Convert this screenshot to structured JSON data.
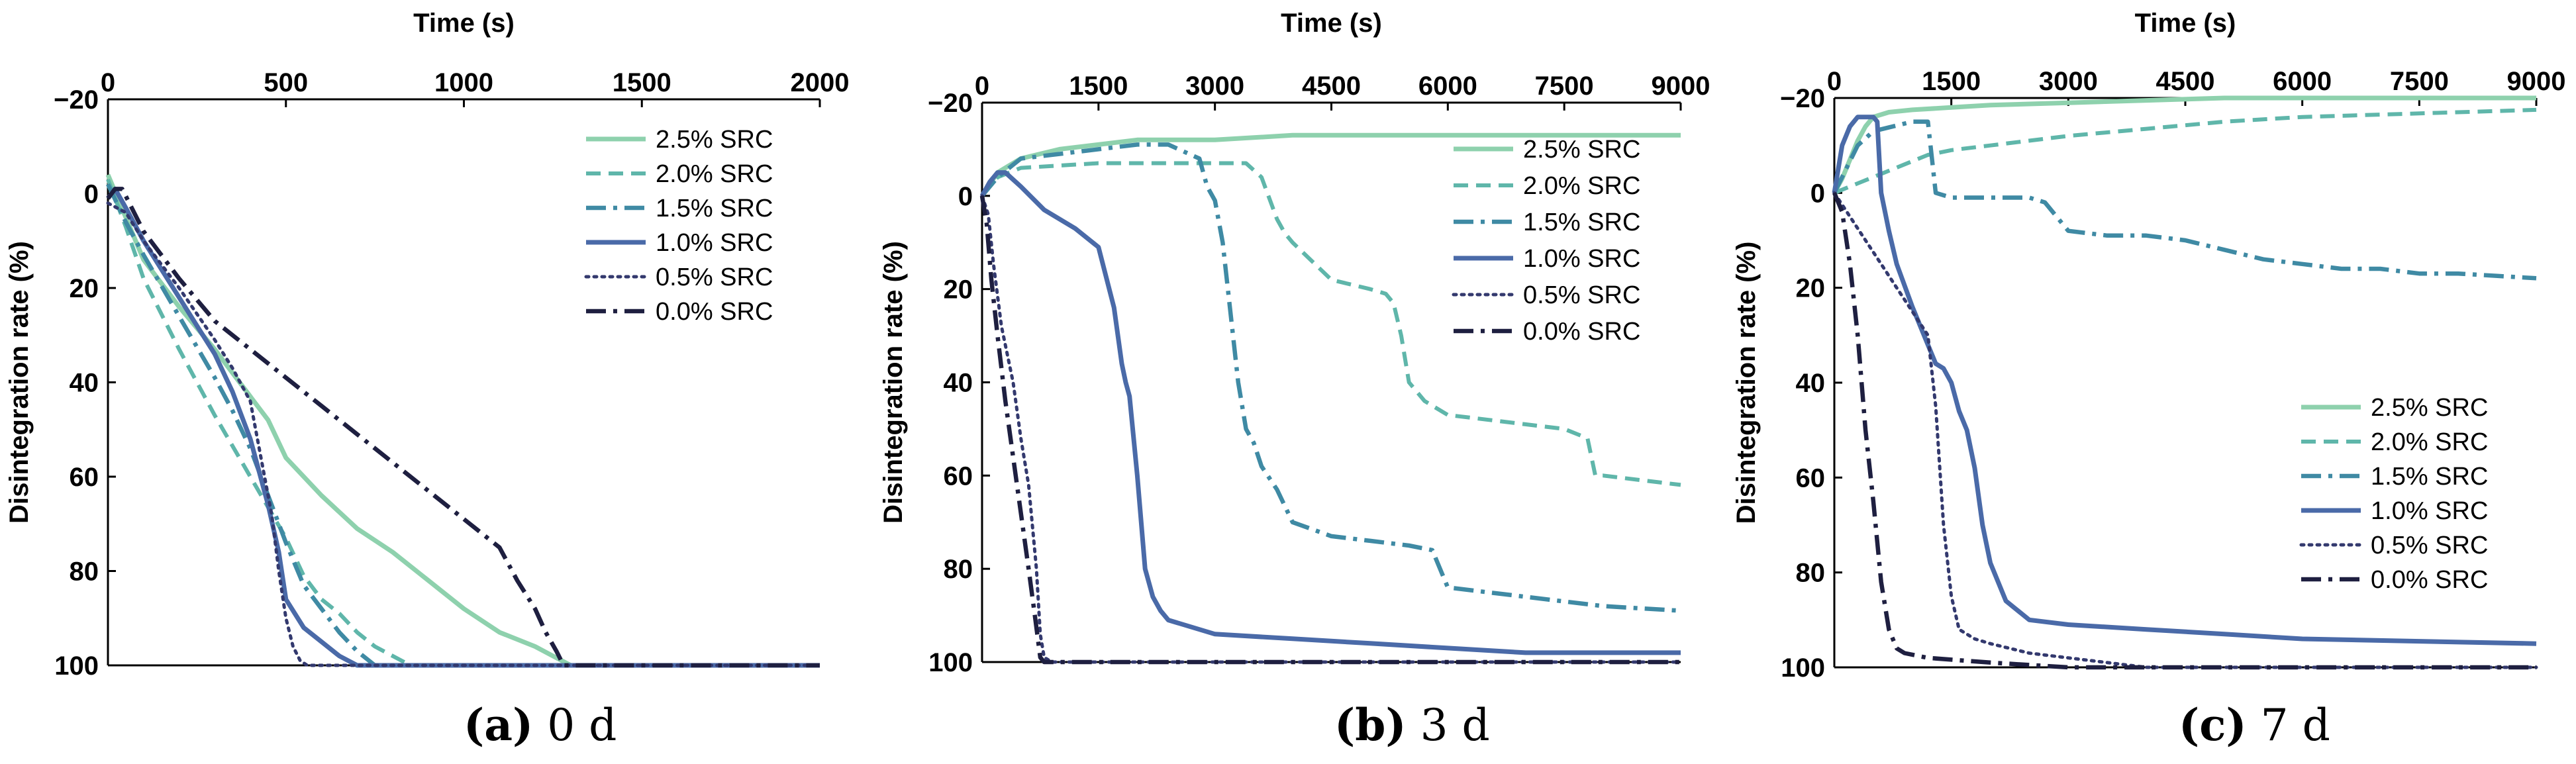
{
  "figure": {
    "panel_count": 3
  },
  "colors": {
    "s25": "#8ed1ad",
    "s20": "#5fb6aa",
    "s15": "#3f8aa4",
    "s10": "#4a6aa8",
    "s05": "#33396e",
    "s00": "#1e1f40"
  },
  "chart_data": [
    {
      "type": "line",
      "caption_letter": "(a)",
      "caption_text": " 0 d",
      "xlabel": "Time (s)",
      "ylabel": "Disintegration rate (%)",
      "xlim": [
        0,
        2000
      ],
      "ylim": [
        -20,
        100
      ],
      "x_ticks": [
        0,
        500,
        1000,
        1500,
        2000
      ],
      "y_ticks": [
        -20,
        0,
        20,
        40,
        60,
        80,
        100
      ],
      "y_tick_labels": [
        "−20",
        "0",
        "20",
        "40",
        "60",
        "80",
        "100"
      ],
      "legend_position": "top-right",
      "series": [
        {
          "name": "2.5% SRC",
          "style": "solid",
          "color_key": "s25",
          "x": [
            0,
            50,
            100,
            200,
            300,
            350,
            400,
            450,
            500,
            600,
            700,
            800,
            900,
            1000,
            1100,
            1200,
            1250,
            1300,
            1400,
            2000
          ],
          "y": [
            -4,
            5,
            14,
            24,
            33,
            38,
            43,
            48,
            56,
            64,
            71,
            76,
            82,
            88,
            93,
            96,
            98,
            100,
            100,
            100
          ]
        },
        {
          "name": "2.0% SRC",
          "style": "dashed",
          "color_key": "s20",
          "x": [
            0,
            50,
            100,
            200,
            300,
            400,
            500,
            550,
            600,
            650,
            700,
            750,
            800,
            850,
            900,
            2000
          ],
          "y": [
            -3,
            7,
            18,
            33,
            47,
            60,
            73,
            81,
            86,
            89,
            93,
            96,
            98,
            100,
            100,
            100
          ]
        },
        {
          "name": "1.5% SRC",
          "style": "dashdot",
          "color_key": "s15",
          "x": [
            0,
            50,
            100,
            200,
            300,
            350,
            400,
            450,
            500,
            550,
            600,
            650,
            700,
            750,
            800,
            2000
          ],
          "y": [
            -2,
            6,
            13,
            26,
            39,
            46,
            54,
            64,
            74,
            83,
            88,
            93,
            97,
            100,
            100,
            100
          ]
        },
        {
          "name": "1.0% SRC",
          "style": "solid",
          "color_key": "s10",
          "x": [
            0,
            20,
            50,
            100,
            200,
            300,
            350,
            400,
            450,
            480,
            500,
            550,
            600,
            650,
            700,
            720,
            2000
          ],
          "y": [
            1,
            -1,
            3,
            10,
            22,
            34,
            42,
            52,
            66,
            76,
            86,
            92,
            95,
            98,
            100,
            100,
            100
          ]
        },
        {
          "name": "0.5% SRC",
          "style": "dotted",
          "color_key": "s05",
          "x": [
            0,
            50,
            100,
            200,
            300,
            350,
            400,
            430,
            460,
            480,
            500,
            520,
            540,
            560,
            2000
          ],
          "y": [
            2,
            4,
            10,
            20,
            31,
            37,
            44,
            56,
            68,
            80,
            90,
            96,
            99,
            100,
            100
          ]
        },
        {
          "name": "0.0% SRC",
          "style": "dashdot",
          "color_key": "s00",
          "x": [
            0,
            20,
            40,
            60,
            100,
            200,
            300,
            400,
            500,
            600,
            700,
            800,
            900,
            1000,
            1100,
            1150,
            1200,
            1230,
            1260,
            1280,
            2000
          ],
          "y": [
            1,
            -1,
            -1,
            2,
            8,
            18,
            27,
            33,
            39,
            45,
            51,
            57,
            63,
            69,
            75,
            82,
            88,
            93,
            97,
            100,
            100
          ]
        }
      ]
    },
    {
      "type": "line",
      "caption_letter": "(b)",
      "caption_text": " 3 d",
      "xlabel": "Time (s)",
      "ylabel": "Disintegration rate (%)",
      "xlim": [
        0,
        9000
      ],
      "ylim": [
        -20,
        100
      ],
      "x_ticks": [
        0,
        1500,
        3000,
        4500,
        6000,
        7500,
        9000
      ],
      "y_ticks": [
        -20,
        0,
        20,
        40,
        60,
        80,
        100
      ],
      "y_tick_labels": [
        "−20",
        "0",
        "20",
        "40",
        "60",
        "80",
        "100"
      ],
      "legend_position": "top-right",
      "series": [
        {
          "name": "2.5% SRC",
          "style": "solid",
          "color_key": "s25",
          "x": [
            0,
            200,
            500,
            1000,
            1500,
            2000,
            3000,
            4000,
            9000
          ],
          "y": [
            0,
            -5,
            -8,
            -10,
            -11,
            -12,
            -12,
            -13,
            -13
          ]
        },
        {
          "name": "2.0% SRC",
          "style": "dashed",
          "color_key": "s20",
          "x": [
            0,
            200,
            500,
            1500,
            2500,
            3400,
            3600,
            3800,
            3900,
            4000,
            4500,
            5000,
            5200,
            5300,
            5400,
            5500,
            5700,
            6000,
            6500,
            7000,
            7500,
            7800,
            7900,
            8000,
            8500,
            9000
          ],
          "y": [
            0,
            -4,
            -6,
            -7,
            -7,
            -7,
            -4,
            5,
            8,
            10,
            18,
            20,
            21,
            23,
            30,
            40,
            44,
            47,
            48,
            49,
            50,
            52,
            60,
            60,
            61,
            62
          ]
        },
        {
          "name": "1.5% SRC",
          "style": "dashdot",
          "color_key": "s15",
          "x": [
            0,
            200,
            500,
            1000,
            1500,
            2000,
            2400,
            2800,
            2900,
            3000,
            3100,
            3200,
            3300,
            3400,
            3500,
            3600,
            3800,
            4000,
            4500,
            5000,
            5500,
            5800,
            6000,
            6500,
            7000,
            7500,
            8000,
            9000
          ],
          "y": [
            0,
            -4,
            -8,
            -9,
            -10,
            -11,
            -11,
            -8,
            -2,
            1,
            10,
            25,
            40,
            50,
            53,
            58,
            63,
            70,
            73,
            74,
            75,
            76,
            84,
            85,
            86,
            87,
            88,
            89
          ]
        },
        {
          "name": "1.0% SRC",
          "style": "solid",
          "color_key": "s10",
          "x": [
            0,
            100,
            200,
            300,
            500,
            800,
            1200,
            1500,
            1700,
            1800,
            1850,
            1900,
            2000,
            2100,
            2200,
            2300,
            2400,
            2600,
            3000,
            4000,
            5000,
            6000,
            7000,
            9000
          ],
          "y": [
            0,
            -3,
            -5,
            -5,
            -2,
            3,
            7,
            11,
            24,
            36,
            40,
            43,
            60,
            80,
            86,
            89,
            91,
            92,
            94,
            95,
            96,
            97,
            98,
            98
          ]
        },
        {
          "name": "0.5% SRC",
          "style": "dotted",
          "color_key": "s05",
          "x": [
            0,
            80,
            150,
            250,
            400,
            500,
            600,
            700,
            750,
            800,
            900,
            9000
          ],
          "y": [
            0,
            4,
            15,
            28,
            40,
            52,
            62,
            80,
            94,
            99,
            100,
            100
          ]
        },
        {
          "name": "0.0% SRC",
          "style": "dashdot",
          "color_key": "s00",
          "x": [
            0,
            60,
            120,
            200,
            300,
            400,
            500,
            600,
            680,
            750,
            800,
            9000
          ],
          "y": [
            0,
            6,
            18,
            30,
            44,
            56,
            68,
            80,
            90,
            99,
            100,
            100
          ]
        }
      ]
    },
    {
      "type": "line",
      "caption_letter": "(c)",
      "caption_text": " 7 d",
      "xlabel": "Time (s)",
      "ylabel": "Disintegration rate (%)",
      "xlim": [
        0,
        9000
      ],
      "ylim": [
        -20,
        100
      ],
      "x_ticks": [
        0,
        1500,
        3000,
        4500,
        6000,
        7500,
        9000
      ],
      "y_ticks": [
        -20,
        0,
        20,
        40,
        60,
        80,
        100
      ],
      "y_tick_labels": [
        "−20",
        "0",
        "20",
        "40",
        "60",
        "80",
        "100"
      ],
      "legend_position": "middle-right",
      "series": [
        {
          "name": "2.5% SRC",
          "style": "solid",
          "color_key": "s25",
          "x": [
            0,
            100,
            200,
            300,
            400,
            500,
            700,
            1000,
            1500,
            2000,
            3000,
            4000,
            5000,
            6000,
            9000
          ],
          "y": [
            0,
            -3,
            -7,
            -11,
            -14,
            -16,
            -17,
            -17.5,
            -18,
            -18.5,
            -19,
            -19.5,
            -20,
            -20,
            -20
          ]
        },
        {
          "name": "2.0% SRC",
          "style": "dashed",
          "color_key": "s20",
          "x": [
            0,
            300,
            600,
            900,
            1200,
            1500,
            2000,
            2500,
            3000,
            4000,
            5000,
            6000,
            7000,
            8000,
            9000
          ],
          "y": [
            0,
            -2,
            -4,
            -6,
            -8,
            -9,
            -10,
            -11,
            -12,
            -13.5,
            -15,
            -16,
            -16.5,
            -17,
            -17.5
          ]
        },
        {
          "name": "1.5% SRC",
          "style": "dashdot",
          "color_key": "s15",
          "x": [
            0,
            300,
            500,
            1000,
            1200,
            1300,
            1500,
            2000,
            2500,
            2700,
            3000,
            3500,
            4000,
            4500,
            5000,
            5500,
            6000,
            6500,
            7000,
            7500,
            8000,
            8500,
            9000
          ],
          "y": [
            0,
            -10,
            -13,
            -15,
            -15,
            0,
            1,
            1,
            1,
            2,
            8,
            9,
            9,
            10,
            12,
            14,
            15,
            16,
            16,
            17,
            17,
            17.5,
            18
          ]
        },
        {
          "name": "1.0% SRC",
          "style": "solid",
          "color_key": "s10",
          "x": [
            0,
            100,
            200,
            300,
            400,
            500,
            550,
            600,
            700,
            800,
            1000,
            1200,
            1300,
            1400,
            1500,
            1600,
            1700,
            1800,
            1900,
            2000,
            2200,
            2500,
            3000,
            4000,
            5000,
            6000,
            9000
          ],
          "y": [
            0,
            -10,
            -14,
            -16,
            -16,
            -16,
            -15,
            0,
            8,
            15,
            24,
            32,
            36,
            37,
            40,
            46,
            50,
            58,
            70,
            78,
            86,
            90,
            91,
            92,
            93,
            94,
            95
          ]
        },
        {
          "name": "0.5% SRC",
          "style": "dotted",
          "color_key": "s05",
          "x": [
            0,
            200,
            400,
            600,
            800,
            1000,
            1200,
            1300,
            1400,
            1500,
            1600,
            1800,
            2000,
            2500,
            3000,
            3500,
            4000,
            9000
          ],
          "y": [
            0,
            5,
            10,
            15,
            20,
            25,
            30,
            45,
            70,
            85,
            92,
            94,
            95,
            97,
            98,
            99,
            100,
            100
          ]
        },
        {
          "name": "0.0% SRC",
          "style": "dashdot",
          "color_key": "s00",
          "x": [
            0,
            100,
            200,
            300,
            400,
            500,
            600,
            700,
            800,
            900,
            1200,
            2000,
            3000,
            9000
          ],
          "y": [
            0,
            4,
            15,
            30,
            50,
            65,
            82,
            92,
            96,
            97,
            98,
            99,
            100,
            100
          ]
        }
      ]
    }
  ]
}
